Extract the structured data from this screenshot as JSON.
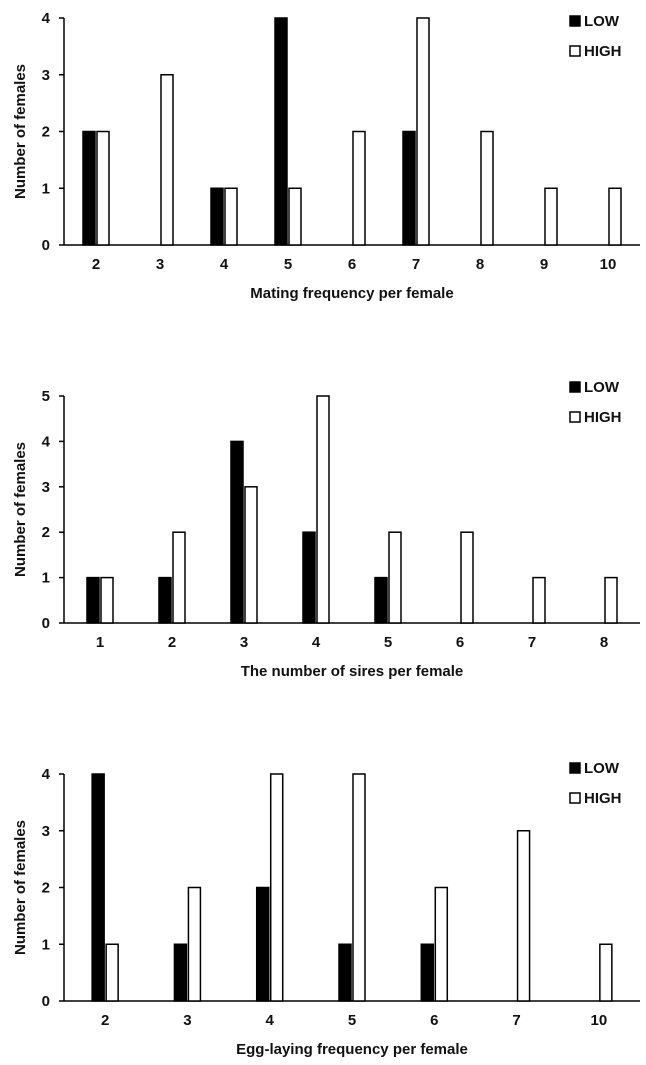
{
  "chart_data": [
    {
      "type": "bar",
      "title": "",
      "xlabel": "Mating frequency per female",
      "ylabel": "Number of females",
      "categories": [
        "2",
        "3",
        "4",
        "5",
        "6",
        "7",
        "8",
        "9",
        "10"
      ],
      "series": [
        {
          "name": "LOW",
          "color": "#000000",
          "values": [
            2,
            0,
            1,
            4,
            0,
            2,
            0,
            0,
            0
          ]
        },
        {
          "name": "HIGH",
          "color": "#ffffff",
          "values": [
            2,
            3,
            1,
            1,
            2,
            4,
            2,
            1,
            1
          ]
        }
      ],
      "ylim": [
        0,
        4
      ],
      "yticks": [
        0,
        1,
        2,
        3,
        4
      ],
      "grid": false,
      "legend": "top-right"
    },
    {
      "type": "bar",
      "title": "",
      "xlabel": "The number of sires per female",
      "ylabel": "Number of females",
      "categories": [
        "1",
        "2",
        "3",
        "4",
        "5",
        "6",
        "7",
        "8"
      ],
      "series": [
        {
          "name": "LOW",
          "color": "#000000",
          "values": [
            1,
            1,
            4,
            2,
            1,
            0,
            0,
            0
          ]
        },
        {
          "name": "HIGH",
          "color": "#ffffff",
          "values": [
            1,
            2,
            3,
            5,
            2,
            2,
            1,
            1
          ]
        }
      ],
      "ylim": [
        0,
        5
      ],
      "yticks": [
        0,
        1,
        2,
        3,
        4,
        5
      ],
      "grid": false,
      "legend": "top-right"
    },
    {
      "type": "bar",
      "title": "",
      "xlabel": "Egg-laying frequency per female",
      "ylabel": "Number of females",
      "categories": [
        "2",
        "3",
        "4",
        "5",
        "6",
        "7",
        "10"
      ],
      "series": [
        {
          "name": "LOW",
          "color": "#000000",
          "values": [
            4,
            1,
            2,
            1,
            1,
            0,
            0
          ]
        },
        {
          "name": "HIGH",
          "color": "#ffffff",
          "values": [
            1,
            2,
            4,
            4,
            2,
            3,
            1
          ]
        }
      ],
      "ylim": [
        0,
        4
      ],
      "yticks": [
        0,
        1,
        2,
        3,
        4
      ],
      "grid": false,
      "legend": "top-right"
    }
  ]
}
